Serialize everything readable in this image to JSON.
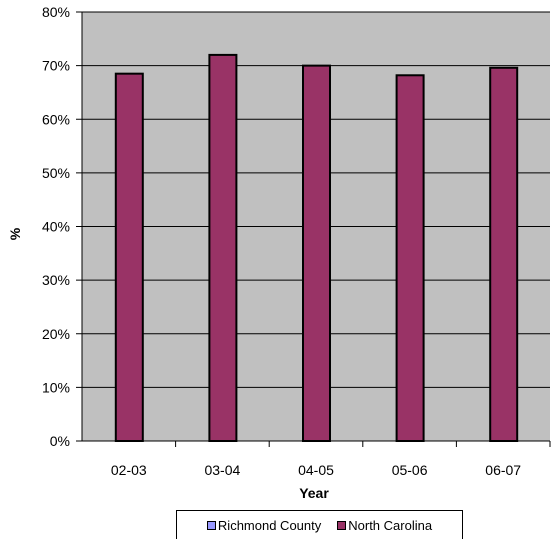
{
  "chart_data": {
    "type": "bar",
    "categories": [
      "02-03",
      "03-04",
      "04-05",
      "05-06",
      "06-07"
    ],
    "series": [
      {
        "name": "Richmond County",
        "values": [
          null,
          null,
          null,
          null,
          null
        ],
        "color": "#9999ff"
      },
      {
        "name": "North Carolina",
        "values": [
          68.5,
          72.0,
          70.0,
          68.2,
          69.6
        ],
        "color": "#993366"
      }
    ],
    "xlabel": "Year",
    "ylabel": "%",
    "ylim": [
      0,
      80
    ],
    "yticks": [
      "0%",
      "10%",
      "20%",
      "30%",
      "40%",
      "50%",
      "60%",
      "70%",
      "80%"
    ],
    "plot_background": "#c0c0c0",
    "grid": true,
    "legend_position": "bottom"
  }
}
